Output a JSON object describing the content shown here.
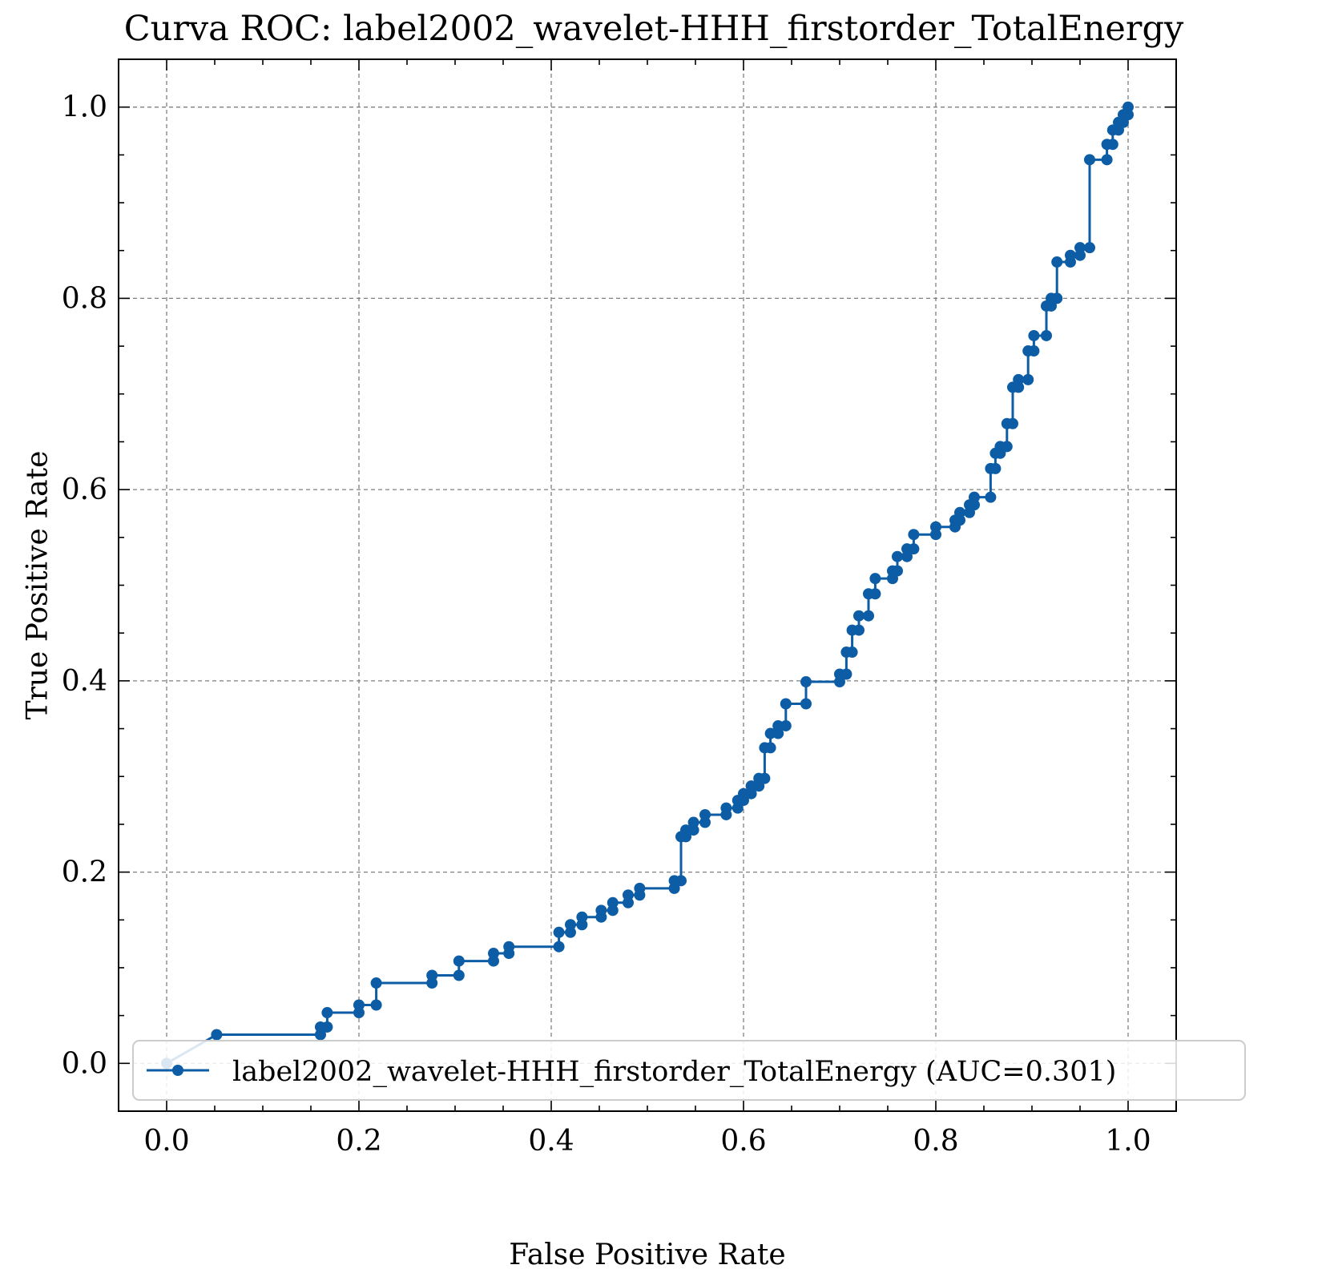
{
  "chart_data": {
    "type": "line",
    "title": "Curva ROC: label2002_wavelet-HHH_firstorder_TotalEnergy",
    "xlabel": "False Positive Rate",
    "ylabel": "True Positive Rate",
    "xlim": [
      -0.05,
      1.05
    ],
    "ylim": [
      -0.05,
      1.05
    ],
    "xticks": [
      0.0,
      0.2,
      0.4,
      0.6,
      0.8,
      1.0
    ],
    "yticks": [
      0.0,
      0.2,
      0.4,
      0.6,
      0.8,
      1.0
    ],
    "xtick_labels": [
      "0.0",
      "0.2",
      "0.4",
      "0.6",
      "0.8",
      "1.0"
    ],
    "ytick_labels": [
      "0.0",
      "0.2",
      "0.4",
      "0.6",
      "0.8",
      "1.0"
    ],
    "grid": true,
    "legend_position": "lower-right",
    "series": [
      {
        "name": "label2002_wavelet-HHH_firstorder_TotalEnergy (AUC=0.301)",
        "color": "#0c5da5",
        "x": [
          0.0,
          0.052,
          0.16,
          0.16,
          0.167,
          0.167,
          0.2,
          0.2,
          0.218,
          0.218,
          0.276,
          0.276,
          0.304,
          0.304,
          0.34,
          0.34,
          0.356,
          0.356,
          0.408,
          0.408,
          0.42,
          0.42,
          0.432,
          0.432,
          0.452,
          0.452,
          0.464,
          0.464,
          0.48,
          0.48,
          0.492,
          0.492,
          0.528,
          0.528,
          0.535,
          0.535,
          0.54,
          0.54,
          0.548,
          0.548,
          0.56,
          0.56,
          0.582,
          0.582,
          0.594,
          0.594,
          0.6,
          0.6,
          0.608,
          0.608,
          0.616,
          0.616,
          0.622,
          0.622,
          0.628,
          0.628,
          0.636,
          0.636,
          0.644,
          0.644,
          0.665,
          0.665,
          0.7,
          0.7,
          0.707,
          0.707,
          0.713,
          0.713,
          0.72,
          0.72,
          0.73,
          0.73,
          0.737,
          0.737,
          0.755,
          0.755,
          0.76,
          0.76,
          0.77,
          0.77,
          0.777,
          0.777,
          0.8,
          0.8,
          0.82,
          0.82,
          0.825,
          0.825,
          0.835,
          0.835,
          0.84,
          0.84,
          0.857,
          0.857,
          0.862,
          0.862,
          0.867,
          0.867,
          0.874,
          0.874,
          0.88,
          0.88,
          0.886,
          0.886,
          0.896,
          0.896,
          0.902,
          0.902,
          0.915,
          0.915,
          0.92,
          0.92,
          0.926,
          0.926,
          0.94,
          0.94,
          0.95,
          0.95,
          0.96,
          0.96,
          0.978,
          0.978,
          0.984,
          0.984,
          0.99,
          0.99,
          0.995,
          0.995,
          1.0,
          1.0
        ],
        "y": [
          0.0,
          0.03,
          0.03,
          0.038,
          0.038,
          0.053,
          0.053,
          0.061,
          0.061,
          0.084,
          0.084,
          0.092,
          0.092,
          0.107,
          0.107,
          0.115,
          0.115,
          0.122,
          0.122,
          0.137,
          0.137,
          0.145,
          0.145,
          0.153,
          0.153,
          0.16,
          0.16,
          0.168,
          0.168,
          0.176,
          0.176,
          0.183,
          0.183,
          0.191,
          0.191,
          0.237,
          0.237,
          0.244,
          0.244,
          0.252,
          0.252,
          0.26,
          0.26,
          0.267,
          0.267,
          0.275,
          0.275,
          0.282,
          0.282,
          0.29,
          0.29,
          0.298,
          0.298,
          0.33,
          0.33,
          0.345,
          0.345,
          0.353,
          0.353,
          0.376,
          0.376,
          0.399,
          0.399,
          0.407,
          0.407,
          0.43,
          0.43,
          0.453,
          0.453,
          0.468,
          0.468,
          0.491,
          0.491,
          0.507,
          0.507,
          0.515,
          0.515,
          0.53,
          0.53,
          0.538,
          0.538,
          0.553,
          0.553,
          0.561,
          0.561,
          0.568,
          0.568,
          0.576,
          0.576,
          0.584,
          0.584,
          0.592,
          0.592,
          0.622,
          0.622,
          0.638,
          0.638,
          0.645,
          0.645,
          0.669,
          0.669,
          0.707,
          0.707,
          0.715,
          0.715,
          0.745,
          0.745,
          0.761,
          0.761,
          0.792,
          0.792,
          0.8,
          0.8,
          0.838,
          0.838,
          0.845,
          0.845,
          0.853,
          0.853,
          0.945,
          0.945,
          0.961,
          0.961,
          0.976,
          0.976,
          0.984,
          0.984,
          0.992,
          0.992,
          1.0
        ]
      }
    ]
  }
}
